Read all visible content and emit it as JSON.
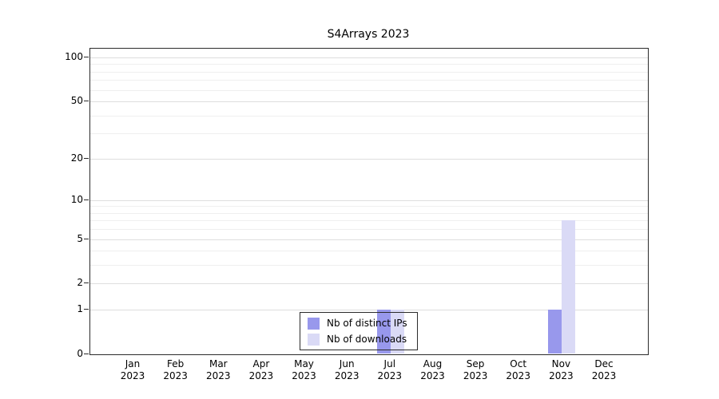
{
  "chart_data": {
    "type": "bar",
    "title": "S4Arrays 2023",
    "categories": [
      "Jan",
      "Feb",
      "Mar",
      "Apr",
      "May",
      "Jun",
      "Jul",
      "Aug",
      "Sep",
      "Oct",
      "Nov",
      "Dec"
    ],
    "x_sub_label": "2023",
    "series": [
      {
        "name": "Nb of distinct IPs",
        "color": "#9898ec",
        "values": [
          0,
          0,
          0,
          0,
          0,
          0,
          1,
          0,
          0,
          0,
          1,
          0
        ]
      },
      {
        "name": "Nb of downloads",
        "color": "#dadaf6",
        "values": [
          0,
          0,
          0,
          0,
          0,
          0,
          1,
          0,
          0,
          0,
          7,
          0
        ]
      }
    ],
    "y_ticks": [
      0,
      1,
      2,
      5,
      10,
      20,
      50,
      100
    ],
    "y_tick_labels": [
      "0",
      "1",
      "2",
      "5",
      "10",
      "20",
      "50",
      "100"
    ],
    "minor_gridlines": [
      1,
      2,
      3,
      4,
      5,
      6,
      7,
      8,
      9,
      10,
      20,
      30,
      40,
      50,
      60,
      70,
      80,
      90,
      100
    ],
    "scale": "log1p",
    "ylim": [
      0,
      100
    ],
    "grid": true,
    "legend_position": "bottom-center",
    "colors": {
      "grid_minor": "#efefef",
      "grid_major": "#dedede",
      "axis": "#2b2b2b",
      "text": "#000000",
      "background": "#ffffff"
    }
  }
}
